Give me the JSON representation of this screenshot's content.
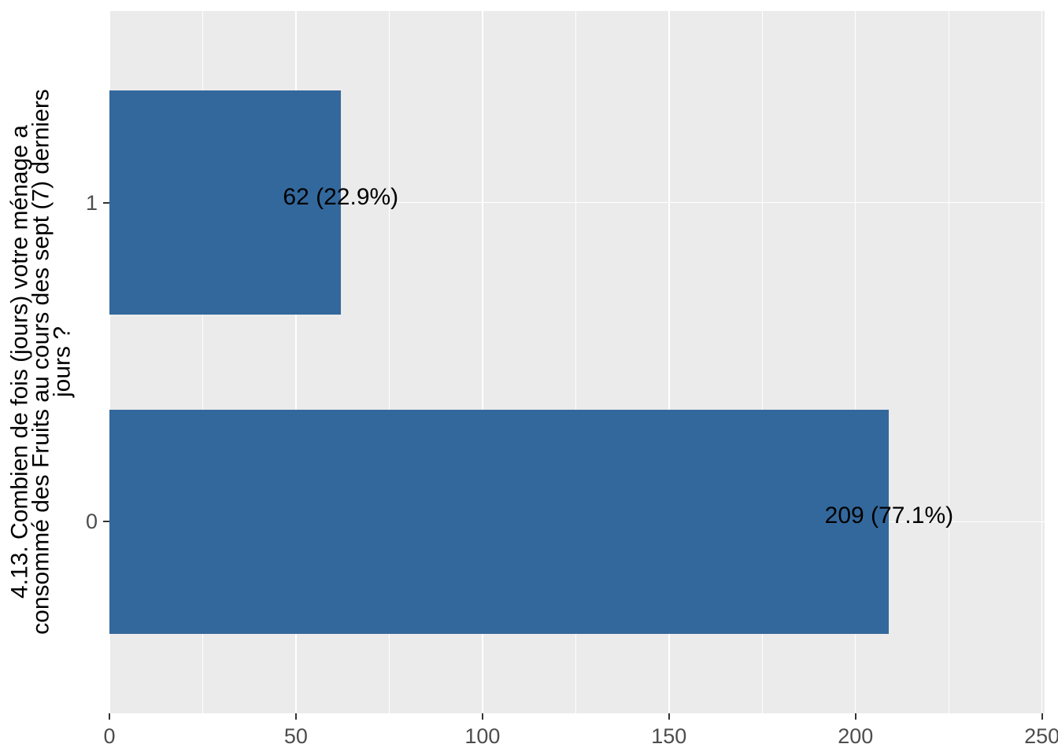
{
  "chart_data": {
    "type": "bar",
    "orientation": "horizontal",
    "title": "",
    "xlabel": "",
    "ylabel": "4.13. Combien de fois (jours) votre ménage a\nconsommé des Fruits au cours des sept (7) derniers\njours ?",
    "categories": [
      "1",
      "0"
    ],
    "values": [
      62,
      209
    ],
    "percentages": [
      22.9,
      77.1
    ],
    "bar_labels": [
      "62 (22.9%)",
      "209 (77.1%)"
    ],
    "x_major_ticks": [
      0,
      50,
      100,
      150,
      200,
      250
    ],
    "x_tick_labels": [
      "0",
      "50",
      "100",
      "150",
      "200",
      "250"
    ],
    "x_minor_ticks": [
      25,
      75,
      125,
      175,
      225
    ],
    "xlim": [
      0,
      250.7
    ],
    "grid": "major-and-minor",
    "legend": "none",
    "colors": {
      "bar_fill": "#33689C",
      "panel_background": "#EBEBEB",
      "gridline": "#FFFFFF",
      "tick_mark": "#333333",
      "axis_text": "#4D4D4D",
      "axis_title": "#000000",
      "bar_label_text": "#000000",
      "figure_background": "#FFFFFF"
    }
  }
}
